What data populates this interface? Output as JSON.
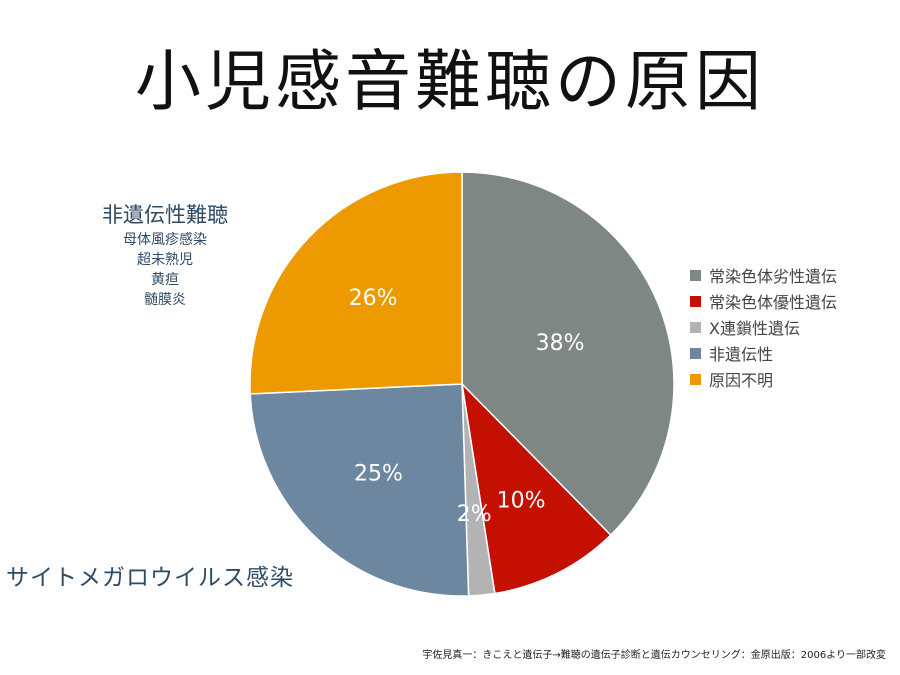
{
  "chart_data": {
    "type": "pie",
    "title": "小児感音難聴の原因",
    "slices": [
      {
        "label": "常染色体劣性遺伝",
        "value": 38,
        "display": "38%",
        "color": "#7f8784"
      },
      {
        "label": "常染色体優性遺伝",
        "value": 10,
        "display": "10%",
        "color": "#c41000"
      },
      {
        "label": "X連鎖性遺伝",
        "value": 2,
        "display": "2%",
        "color": "#b3b3b3"
      },
      {
        "label": "非遺伝性",
        "value": 25,
        "display": "25%",
        "color": "#6e87a1"
      },
      {
        "label": "原因不明",
        "value": 26,
        "display": "26%",
        "color": "#ec9a00"
      }
    ],
    "legend_position": "right"
  },
  "annotations": {
    "non_genetic_heading": "非遺伝性難聴",
    "non_genetic_causes": [
      "母体風疹感染",
      "超未熟児",
      "黄疸",
      "髄膜炎"
    ],
    "cmv": "サイトメガロウイルス感染"
  },
  "source": "宇佐見真一：きこえと遺伝子→難聴の遺伝子診断と遺伝カウンセリング：金原出版：2006より一部改変"
}
